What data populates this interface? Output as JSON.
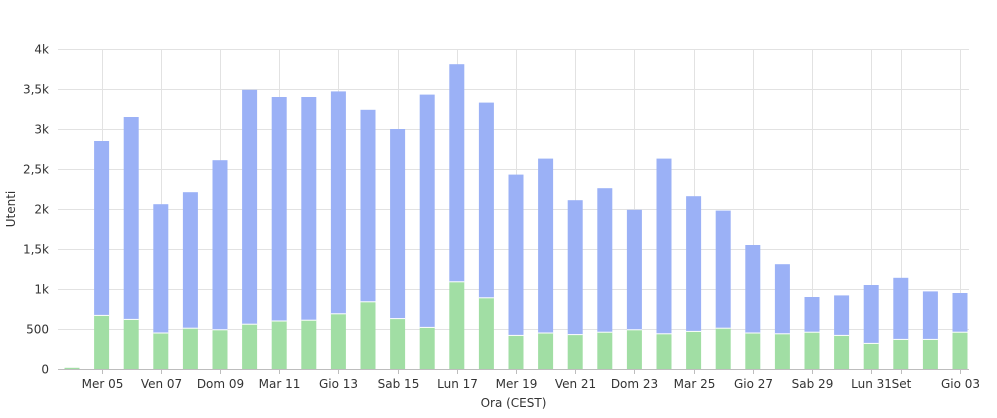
{
  "chart_data": {
    "type": "bar",
    "stacked": true,
    "xlabel": "Ora (CEST)",
    "ylabel": "Utenti",
    "ylim": [
      0,
      4000
    ],
    "yticks": [
      {
        "value": 0,
        "label": "0"
      },
      {
        "value": 500,
        "label": "500"
      },
      {
        "value": 1000,
        "label": "1k"
      },
      {
        "value": 1500,
        "label": "1,5k"
      },
      {
        "value": 2000,
        "label": "2k"
      },
      {
        "value": 2500,
        "label": "2,5k"
      },
      {
        "value": 3000,
        "label": "3k"
      },
      {
        "value": 3500,
        "label": "3,5k"
      },
      {
        "value": 4000,
        "label": "4k"
      }
    ],
    "xtick_labels": [
      {
        "index": 1,
        "label": "Mer 05"
      },
      {
        "index": 3,
        "label": "Ven 07"
      },
      {
        "index": 5,
        "label": "Dom 09"
      },
      {
        "index": 7,
        "label": "Mar 11"
      },
      {
        "index": 9,
        "label": "Gio 13"
      },
      {
        "index": 11,
        "label": "Sab 15"
      },
      {
        "index": 13,
        "label": "Lun 17"
      },
      {
        "index": 15,
        "label": "Mer 19"
      },
      {
        "index": 17,
        "label": "Ven 21"
      },
      {
        "index": 19,
        "label": "Dom 23"
      },
      {
        "index": 21,
        "label": "Mar 25"
      },
      {
        "index": 23,
        "label": "Gio 27"
      },
      {
        "index": 25,
        "label": "Sab 29"
      },
      {
        "index": 27,
        "label": "Lun 31"
      },
      {
        "index": 28,
        "label": "Set"
      },
      {
        "index": 30,
        "label": "Gio 03"
      }
    ],
    "grid": true,
    "legend": "none",
    "colors": {
      "bottom": "#a1dea4",
      "top": "#9bb1f6"
    },
    "categories": [
      "",
      "Mer 05",
      "",
      "Ven 07",
      "",
      "Dom 09",
      "",
      "Mar 11",
      "",
      "Gio 13",
      "",
      "Sab 15",
      "",
      "Lun 17",
      "",
      "Mer 19",
      "",
      "Ven 21",
      "",
      "Dom 23",
      "",
      "Mar 25",
      "",
      "Gio 27",
      "",
      "Sab 29",
      "",
      "Lun 31",
      "Set",
      "",
      "Gio 03"
    ],
    "series": [
      {
        "key": "bottom",
        "values": [
          15,
          670,
          620,
          450,
          510,
          490,
          560,
          600,
          610,
          690,
          840,
          630,
          520,
          1090,
          890,
          420,
          450,
          430,
          460,
          490,
          440,
          470,
          510,
          450,
          440,
          460,
          420,
          320,
          370,
          370,
          460
        ]
      },
      {
        "key": "top",
        "values": [
          0,
          2180,
          2530,
          1610,
          1700,
          2120,
          2930,
          2800,
          2790,
          2780,
          2400,
          2370,
          2910,
          2720,
          2440,
          2010,
          2180,
          1680,
          1800,
          1500,
          2190,
          1690,
          1470,
          1100,
          870,
          440,
          500,
          730,
          770,
          600,
          490
        ]
      }
    ]
  }
}
